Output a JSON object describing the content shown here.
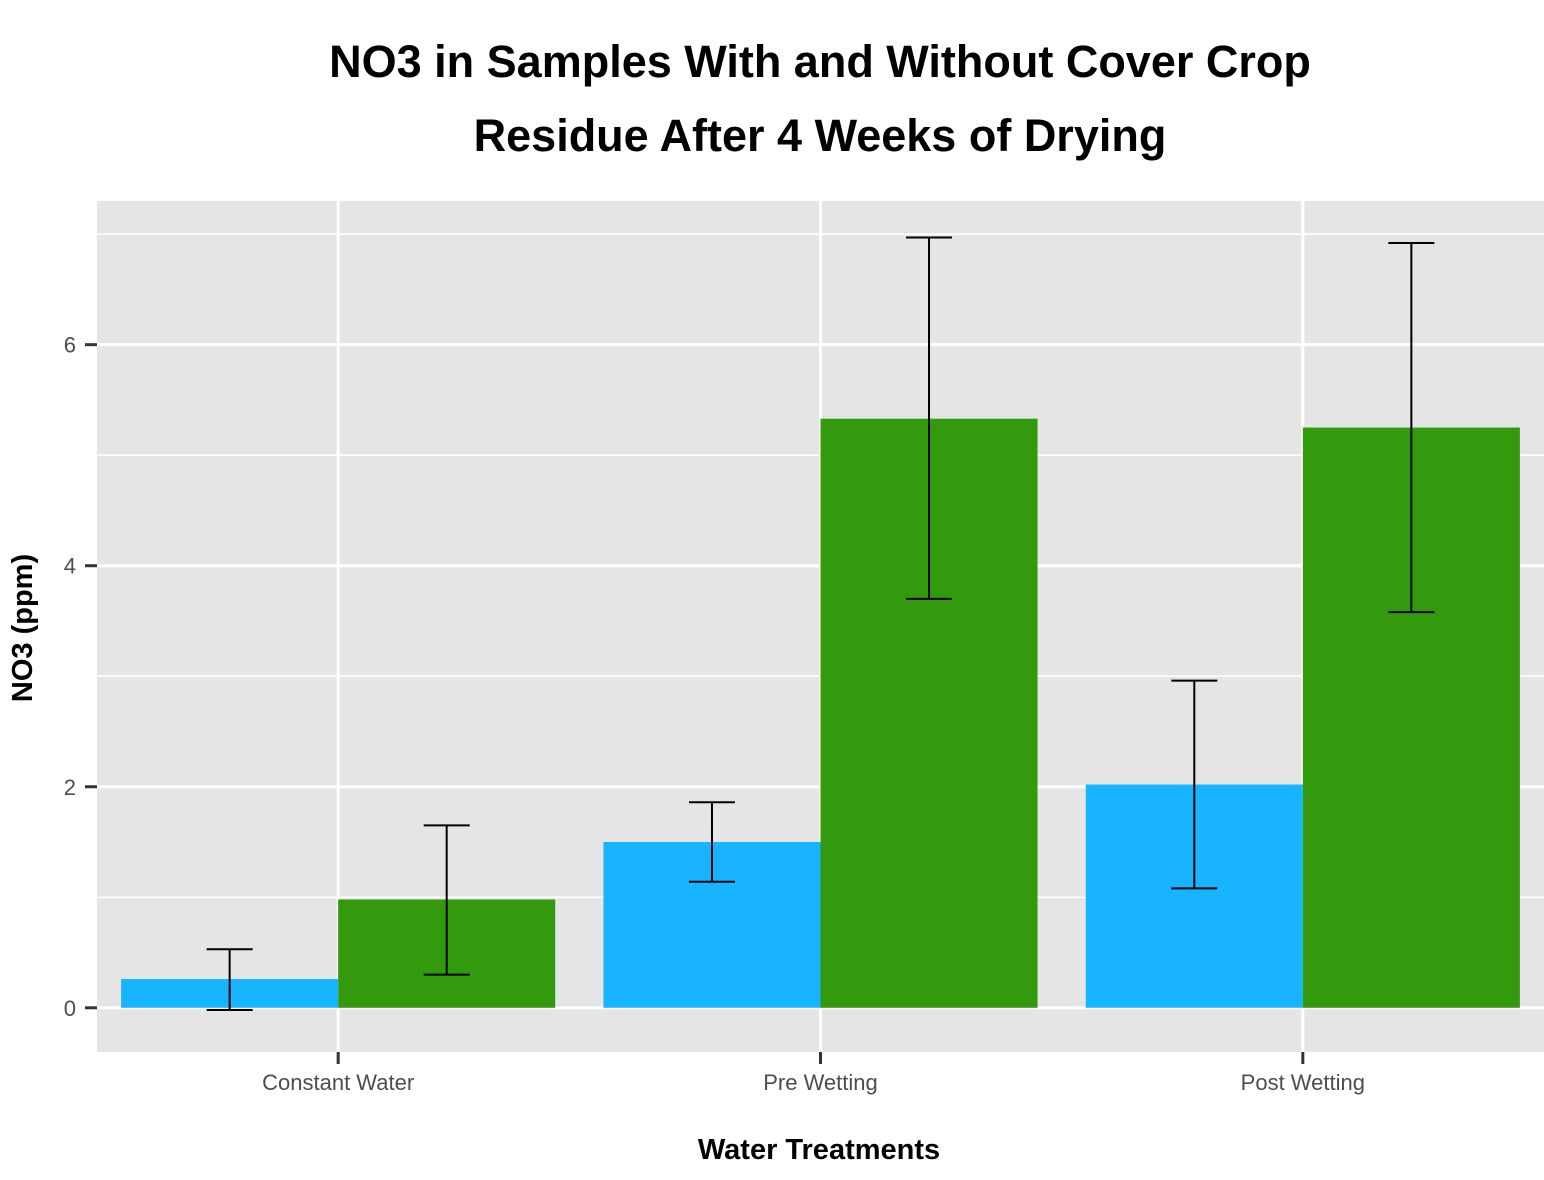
{
  "chart_data": {
    "type": "bar",
    "title_lines": [
      "NO3 in Samples With and Without Cover Crop",
      "Residue After 4 Weeks of Drying"
    ],
    "xlabel": "Water Treatments",
    "ylabel": "NO3 (ppm)",
    "categories": [
      "Constant Water",
      "Pre Wetting",
      "Post Wetting"
    ],
    "series": [
      {
        "color": "#19B4FF",
        "values": [
          0.26,
          1.5,
          2.02
        ],
        "error_low": [
          -0.02,
          1.14,
          1.08
        ],
        "error_high": [
          0.53,
          1.86,
          2.96
        ]
      },
      {
        "color": "#33990D",
        "values": [
          0.98,
          5.33,
          5.25
        ],
        "error_low": [
          0.3,
          3.7,
          3.58
        ],
        "error_high": [
          1.65,
          6.97,
          6.92
        ]
      }
    ],
    "y_ticks": [
      0,
      2,
      4,
      6
    ],
    "ylim": [
      -0.4,
      7.3
    ],
    "grid": true,
    "legend": "none",
    "panel_color": "#E5E5E5",
    "grid_color": "#FFFFFF"
  }
}
